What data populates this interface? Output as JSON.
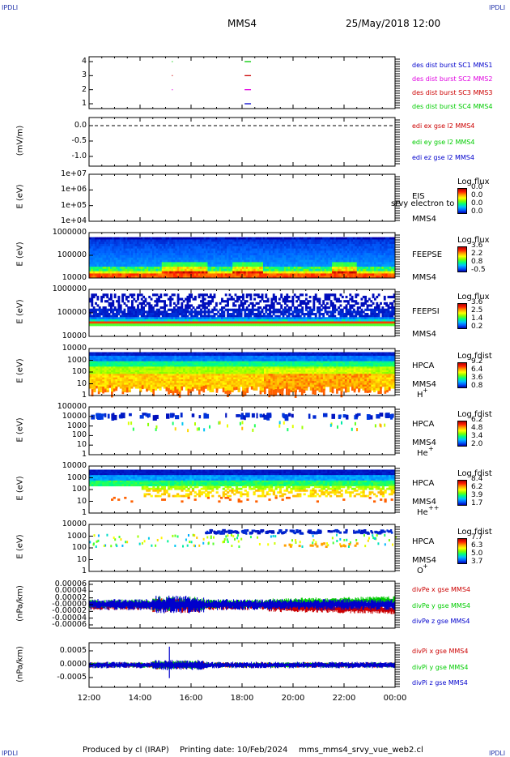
{
  "header": {
    "corner": "IPDLI",
    "spacecraft": "MMS4",
    "date": "25/May/2018 12:00"
  },
  "footer": {
    "producer": "Produced by cl (IRAP)",
    "printing": "Printing date: 10/Feb/2024",
    "file": "mms_mms4_srvy_vue_web2.cl"
  },
  "colors": {
    "red": "#ff0000",
    "green": "#00cc00",
    "blue": "#0000cc",
    "magenta": "#e000e0"
  },
  "chart_data": [
    {
      "type": "scatter",
      "panel": "burst",
      "ylabel": "",
      "yticks": [
        "4",
        "3",
        "2",
        "1"
      ],
      "ylim": [
        0.5,
        4.5
      ],
      "legend": [
        {
          "label": "des dist burst SC1 MMS1",
          "color": "#0000cc"
        },
        {
          "label": "des dist burst SC2 MMS2",
          "color": "#e000e0"
        },
        {
          "label": "des dist burst SC3 MMS3",
          "color": "#cc0000"
        },
        {
          "label": "des dist burst SC4 MMS4",
          "color": "#00cc00"
        }
      ],
      "segments": [
        {
          "start": 15.25,
          "end": 15.28,
          "level": 4
        },
        {
          "start": 15.25,
          "end": 15.28,
          "level": 3
        },
        {
          "start": 15.25,
          "end": 15.28,
          "level": 2
        },
        {
          "start": 18.1,
          "end": 18.35,
          "level": 4
        },
        {
          "start": 18.1,
          "end": 18.35,
          "level": 3
        },
        {
          "start": 18.1,
          "end": 18.35,
          "level": 2
        },
        {
          "start": 18.1,
          "end": 18.35,
          "level": 1
        }
      ]
    },
    {
      "type": "line",
      "panel": "edi",
      "ylabel": "(mV/m)",
      "yticks": [
        "0.0",
        "-0.5",
        "-1.0"
      ],
      "ylim": [
        -1.35,
        0.35
      ],
      "legend": [
        {
          "label": "edi ex gse l2 MMS4",
          "color": "#cc0000"
        },
        {
          "label": "edi ey gse l2 MMS4",
          "color": "#00cc00"
        },
        {
          "label": "edi ez gse l2 MMS4",
          "color": "#0000cc"
        }
      ],
      "reference_line": 0.0
    },
    {
      "type": "heatmap",
      "panel": "eis",
      "ylabel": "E (eV)",
      "yticks": [
        "1e+07",
        "1e+06",
        "1e+05",
        "1e+04"
      ],
      "ylim": [
        10000,
        10000000
      ],
      "yscale": "log",
      "right_labels": [
        "EIS",
        "MMS4"
      ],
      "overlay_text": "srvy electron to",
      "colorbar": {
        "title": "Log flux",
        "ticks": [
          "0.0",
          "0.0",
          "0.0",
          "0.0"
        ]
      }
    },
    {
      "type": "heatmap",
      "panel": "feepse",
      "ylabel": "E (eV)",
      "yticks": [
        "1000000",
        "100000",
        "10000"
      ],
      "ylim": [
        10000,
        1000000
      ],
      "yscale": "log",
      "right_labels": [
        "FEEPSE",
        "MMS4"
      ],
      "colorbar": {
        "title": "Log flux",
        "ticks": [
          "3.6",
          "2.2",
          "0.8",
          "-0.5"
        ]
      }
    },
    {
      "type": "heatmap",
      "panel": "feepsi",
      "ylabel": "E (eV)",
      "yticks": [
        "1000000",
        "100000",
        "10000"
      ],
      "ylim": [
        10000,
        1000000
      ],
      "yscale": "log",
      "right_labels": [
        "FEEPSI",
        "MMS4"
      ],
      "colorbar": {
        "title": "Log flux",
        "ticks": [
          "3.6",
          "2.5",
          "1.4",
          "0.2"
        ]
      }
    },
    {
      "type": "heatmap",
      "panel": "hpca-h",
      "ylabel": "E (eV)",
      "yticks": [
        "10000",
        "1000",
        "100",
        "10",
        "1"
      ],
      "ylim": [
        1,
        30000
      ],
      "yscale": "log",
      "right_labels": [
        "HPCA",
        "MMS4"
      ],
      "species": "H",
      "species_charge": "+",
      "colorbar": {
        "title": "Log fdist",
        "ticks": [
          "9.2",
          "6.4",
          "3.6",
          "0.8"
        ]
      }
    },
    {
      "type": "heatmap",
      "panel": "hpca-he",
      "ylabel": "E (eV)",
      "yticks": [
        "100000",
        "10000",
        "1000",
        "100",
        "10",
        "1"
      ],
      "ylim": [
        1,
        100000
      ],
      "yscale": "log",
      "right_labels": [
        "HPCA",
        "MMS4"
      ],
      "species": "He",
      "species_charge": "+",
      "colorbar": {
        "title": "Log fdist",
        "ticks": [
          "6.2",
          "4.8",
          "3.4",
          "2.0"
        ]
      }
    },
    {
      "type": "heatmap",
      "panel": "hpca-hepp",
      "ylabel": "E (eV)",
      "yticks": [
        "10000",
        "1000",
        "100",
        "10",
        "1"
      ],
      "ylim": [
        1,
        30000
      ],
      "yscale": "log",
      "right_labels": [
        "HPCA",
        "MMS4"
      ],
      "species": "He",
      "species_charge": "++",
      "colorbar": {
        "title": "Log fdist",
        "ticks": [
          "8.4",
          "6.2",
          "3.9",
          "1.7"
        ]
      }
    },
    {
      "type": "heatmap",
      "panel": "hpca-o",
      "ylabel": "E (eV)",
      "yticks": [
        "10000",
        "1000",
        "100",
        "10",
        "1"
      ],
      "ylim": [
        1,
        30000
      ],
      "yscale": "log",
      "right_labels": [
        "HPCA",
        "MMS4"
      ],
      "species": "O",
      "species_charge": "+",
      "colorbar": {
        "title": "Log fdist",
        "ticks": [
          "7.7",
          "6.3",
          "5.0",
          "3.7"
        ]
      }
    },
    {
      "type": "line",
      "panel": "divpe",
      "ylabel": "(nPa/km)",
      "yticks": [
        "0.00006",
        "0.00004",
        "0.00002",
        "-0.00000",
        "-0.00002",
        "-0.00004",
        "-0.00006"
      ],
      "ylim": [
        -7e-05,
        7e-05
      ],
      "legend": [
        {
          "label": "divPe x gse MMS4",
          "color": "#cc0000"
        },
        {
          "label": "divPe y gse MMS4",
          "color": "#00cc00"
        },
        {
          "label": "divPe z gse MMS4",
          "color": "#0000cc"
        }
      ]
    },
    {
      "type": "line",
      "panel": "divpi",
      "ylabel": "(nPa/km)",
      "yticks": [
        "0.0005",
        "0.0000",
        "-0.0005"
      ],
      "ylim": [
        -0.00085,
        0.00085
      ],
      "legend": [
        {
          "label": "divPi x gse MMS4",
          "color": "#cc0000"
        },
        {
          "label": "divPi y gse MMS4",
          "color": "#00cc00"
        },
        {
          "label": "divPi z gse MMS4",
          "color": "#0000cc"
        }
      ]
    }
  ],
  "x_axis": {
    "ticks": [
      "12:00",
      "14:00",
      "16:00",
      "18:00",
      "20:00",
      "22:00",
      "00:00"
    ],
    "range_hours": [
      12,
      24
    ]
  }
}
